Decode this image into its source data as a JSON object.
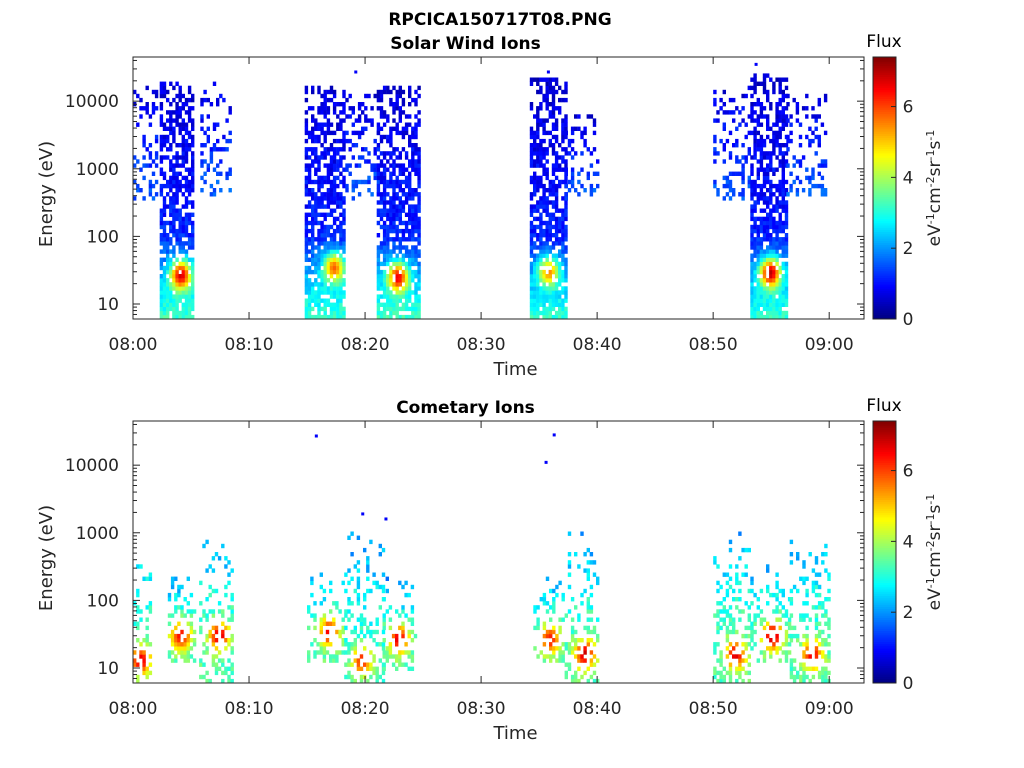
{
  "figure": {
    "title": "RPCICA150717T08.PNG"
  },
  "colorbar": {
    "label": "Flux",
    "unit_html": "eV-1cm-2sr-1s-1",
    "range": [
      0,
      7.4
    ],
    "ticks": [
      "0",
      "2",
      "4",
      "6"
    ],
    "colormap": "jet"
  },
  "chart_data": [
    {
      "type": "heatmap",
      "title": "Solar Wind Ions",
      "xlabel": "Time",
      "ylabel": "Energy (eV)",
      "x_ticks": [
        "08:00",
        "08:10",
        "08:20",
        "08:30",
        "08:40",
        "08:50",
        "09:00"
      ],
      "x_range_minutes": [
        0,
        63
      ],
      "y_scale": "log",
      "y_range": [
        6,
        45000
      ],
      "y_ticks": [
        "10",
        "100",
        "1000",
        "10000"
      ],
      "bursts": [
        {
          "t0": 0.0,
          "t1": 2.0,
          "e0": 300,
          "e1": 15000,
          "dens": 0.35,
          "peak": 1.6
        },
        {
          "t0": 2.3,
          "t1": 5.2,
          "e0": 6,
          "e1": 18000,
          "dens": 0.8,
          "peak": 1.5,
          "hot_center": [
            4.0,
            25
          ],
          "hot_value": 6.8
        },
        {
          "t0": 5.8,
          "t1": 8.3,
          "e0": 350,
          "e1": 17000,
          "dens": 0.3,
          "peak": 1.6
        },
        {
          "t0": 14.8,
          "t1": 18.2,
          "e0": 6,
          "e1": 15000,
          "dens": 0.8,
          "peak": 1.5,
          "hot_center": [
            17.2,
            32
          ],
          "hot_value": 5.8
        },
        {
          "t0": 18.3,
          "t1": 21.0,
          "e0": 300,
          "e1": 12000,
          "dens": 0.3,
          "peak": 1.6
        },
        {
          "t0": 21.0,
          "t1": 24.6,
          "e0": 6,
          "e1": 16000,
          "dens": 0.8,
          "peak": 1.5,
          "hot_center": [
            22.7,
            23
          ],
          "hot_value": 6.6
        },
        {
          "t0": 34.2,
          "t1": 37.2,
          "e0": 6,
          "e1": 20000,
          "dens": 0.8,
          "peak": 1.4,
          "hot_center": [
            35.7,
            28
          ],
          "hot_value": 5.5
        },
        {
          "t0": 37.2,
          "t1": 40.0,
          "e0": 300,
          "e1": 6000,
          "dens": 0.3,
          "peak": 1.6
        },
        {
          "t0": 50.0,
          "t1": 53.2,
          "e0": 300,
          "e1": 15000,
          "dens": 0.35,
          "peak": 1.6
        },
        {
          "t0": 53.2,
          "t1": 56.3,
          "e0": 6,
          "e1": 25000,
          "dens": 0.8,
          "peak": 1.4,
          "hot_center": [
            54.8,
            27
          ],
          "hot_value": 7.0
        },
        {
          "t0": 56.3,
          "t1": 59.8,
          "e0": 350,
          "e1": 12000,
          "dens": 0.3,
          "peak": 1.6
        }
      ],
      "isolated_points": [
        [
          19.2,
          27000
        ],
        [
          35.8,
          27000
        ],
        [
          53.7,
          35000
        ]
      ]
    },
    {
      "type": "heatmap",
      "title": "Cometary Ions",
      "xlabel": "Time",
      "ylabel": "Energy (eV)",
      "x_ticks": [
        "08:00",
        "08:10",
        "08:20",
        "08:30",
        "08:40",
        "08:50",
        "09:00"
      ],
      "x_range_minutes": [
        0,
        63
      ],
      "y_scale": "log",
      "y_range": [
        6,
        45000
      ],
      "y_ticks": [
        "10",
        "100",
        "1000",
        "10000"
      ],
      "bursts": [
        {
          "t0": 0.0,
          "t1": 1.5,
          "e0": 6,
          "e1": 900,
          "dens": 0.45,
          "peak": 2.8,
          "hot_center": [
            0.5,
            12
          ],
          "hot_value": 6.8
        },
        {
          "t0": 3.0,
          "t1": 5.3,
          "e0": 12,
          "e1": 250,
          "dens": 0.55,
          "peak": 2.8,
          "hot_center": [
            4.0,
            28
          ],
          "hot_value": 6.5
        },
        {
          "t0": 5.7,
          "t1": 8.5,
          "e0": 6,
          "e1": 1000,
          "dens": 0.45,
          "peak": 2.8,
          "hot_center": [
            7.3,
            28
          ],
          "hot_value": 6.9
        },
        {
          "t0": 15.0,
          "t1": 18.0,
          "e0": 12,
          "e1": 250,
          "dens": 0.5,
          "peak": 2.8,
          "hot_center": [
            16.8,
            32
          ],
          "hot_value": 6.6
        },
        {
          "t0": 18.2,
          "t1": 21.5,
          "e0": 6,
          "e1": 1200,
          "dens": 0.45,
          "peak": 2.6,
          "hot_center": [
            19.6,
            12
          ],
          "hot_value": 6.3
        },
        {
          "t0": 21.5,
          "t1": 24.3,
          "e0": 8,
          "e1": 200,
          "dens": 0.5,
          "peak": 2.8,
          "hot_center": [
            22.8,
            25
          ],
          "hot_value": 6.8
        },
        {
          "t0": 34.5,
          "t1": 37.2,
          "e0": 12,
          "e1": 250,
          "dens": 0.5,
          "peak": 2.8,
          "hot_center": [
            35.8,
            25
          ],
          "hot_value": 6.4
        },
        {
          "t0": 37.2,
          "t1": 40.0,
          "e0": 6,
          "e1": 1000,
          "dens": 0.45,
          "peak": 2.8,
          "hot_center": [
            38.8,
            15
          ],
          "hot_value": 6.9
        },
        {
          "t0": 50.0,
          "t1": 53.2,
          "e0": 6,
          "e1": 1100,
          "dens": 0.45,
          "peak": 2.8,
          "hot_center": [
            51.8,
            15
          ],
          "hot_value": 6.8
        },
        {
          "t0": 53.2,
          "t1": 56.6,
          "e0": 12,
          "e1": 350,
          "dens": 0.5,
          "peak": 2.8,
          "hot_center": [
            55.0,
            28
          ],
          "hot_value": 7.1
        },
        {
          "t0": 56.6,
          "t1": 60.0,
          "e0": 6,
          "e1": 900,
          "dens": 0.45,
          "peak": 2.8,
          "hot_center": [
            58.4,
            15
          ],
          "hot_value": 6.7
        }
      ],
      "isolated_points": [
        [
          15.8,
          27000
        ],
        [
          19.8,
          1900
        ],
        [
          21.8,
          1600
        ],
        [
          35.6,
          11000
        ],
        [
          36.3,
          28000
        ]
      ]
    }
  ]
}
